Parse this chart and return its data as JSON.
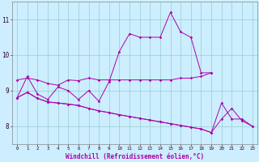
{
  "xlabel": "Windchill (Refroidissement éolien,°C)",
  "bg_color": "#cceeff",
  "grid_color": "#99cccc",
  "line_color": "#aa00aa",
  "xlim": [
    -0.5,
    23.5
  ],
  "ylim": [
    7.5,
    11.5
  ],
  "xticks": [
    0,
    1,
    2,
    3,
    4,
    5,
    6,
    7,
    8,
    9,
    10,
    11,
    12,
    13,
    14,
    15,
    16,
    17,
    18,
    19,
    20,
    21,
    22,
    23
  ],
  "yticks": [
    8,
    9,
    10,
    11
  ],
  "lines": [
    [
      8.8,
      9.4,
      8.9,
      8.75,
      9.1,
      9.0,
      8.75,
      9.0,
      8.7,
      9.25,
      10.1,
      10.6,
      10.5,
      10.5,
      10.5,
      11.2,
      10.65,
      10.5,
      9.5,
      9.5,
      null,
      null,
      null,
      null
    ],
    [
      9.3,
      9.35,
      9.3,
      9.2,
      9.15,
      9.3,
      9.28,
      9.35,
      9.3,
      9.3,
      9.3,
      9.3,
      9.3,
      9.3,
      9.3,
      9.3,
      9.35,
      9.35,
      9.4,
      9.5,
      null,
      null,
      null,
      null
    ],
    [
      8.8,
      8.95,
      8.78,
      8.68,
      8.65,
      8.62,
      8.58,
      8.5,
      8.43,
      8.38,
      8.32,
      8.27,
      8.22,
      8.17,
      8.12,
      8.07,
      8.02,
      7.97,
      7.92,
      7.82,
      8.2,
      8.5,
      8.15,
      8.0
    ],
    [
      8.8,
      8.95,
      8.78,
      8.68,
      8.65,
      8.62,
      8.58,
      8.5,
      8.43,
      8.38,
      8.32,
      8.27,
      8.22,
      8.17,
      8.12,
      8.07,
      8.02,
      7.97,
      7.92,
      7.82,
      8.65,
      8.2,
      8.2,
      8.0
    ]
  ],
  "xlabel_color": "#aa00aa",
  "tick_color": "#330033",
  "xlabel_fontsize": 5.5,
  "xtick_fontsize": 4.2,
  "ytick_fontsize": 5.5
}
